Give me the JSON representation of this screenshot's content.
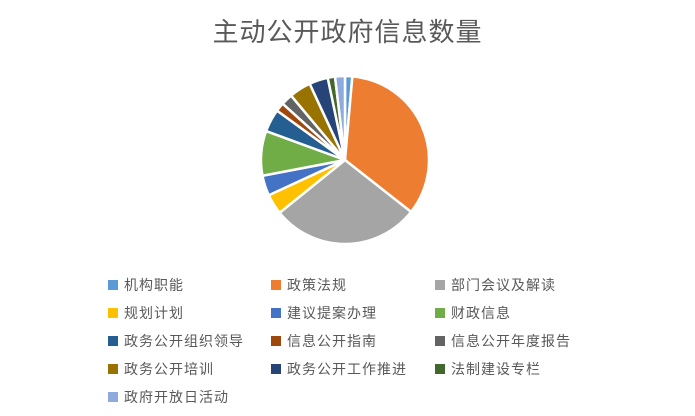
{
  "colors": {
    "background": "#ffffff",
    "title_text": "#595959",
    "legend_text": "#595959",
    "slice_border": "#ffffff"
  },
  "chart_data": {
    "type": "pie",
    "title": "主动公开政府信息数量",
    "legend_position": "bottom",
    "legend_columns": 3,
    "start_angle_deg": 0,
    "direction": "clockwise",
    "categories": [
      "机构职能",
      "政策法规",
      "部门会议及解读",
      "规划计划",
      "建议提案办理",
      "财政信息",
      "政务公开组织领导",
      "信息公开指南",
      "信息公开年度报告",
      "政务公开培训",
      "政务公开工作推进",
      "法制建设专栏",
      "政府开放日活动"
    ],
    "values": [
      1.4,
      34.2,
      28.6,
      3.9,
      3.9,
      8.6,
      4.4,
      1.7,
      2.2,
      4.2,
      3.6,
      1.4,
      1.9
    ],
    "colors": [
      "#5B9BD5",
      "#ED7D31",
      "#A5A5A5",
      "#FFC000",
      "#4472C4",
      "#70AD47",
      "#255E91",
      "#9E480E",
      "#636363",
      "#997300",
      "#264478",
      "#43682B",
      "#8FAADC"
    ]
  }
}
